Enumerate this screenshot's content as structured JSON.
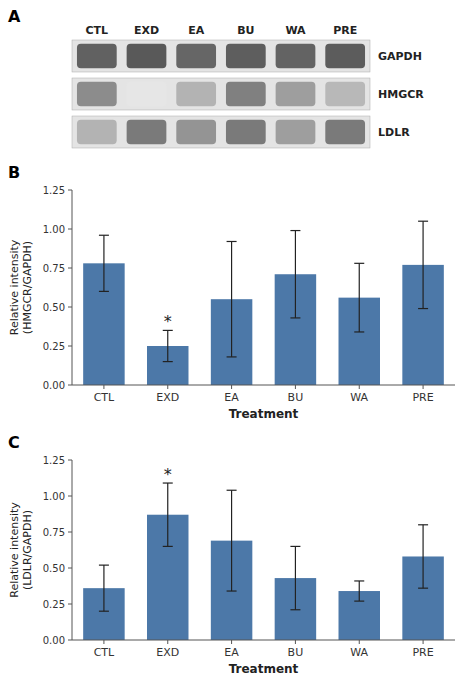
{
  "chart_data": [
    {
      "type": "heatmap",
      "title": "A",
      "categories": [
        "CTL",
        "EXD",
        "EA",
        "BU",
        "WA",
        "PRE"
      ],
      "series": [
        {
          "name": "GAPDH",
          "values": [
            0.62,
            0.65,
            0.6,
            0.63,
            0.61,
            0.64
          ]
        },
        {
          "name": "HMGCR",
          "values": [
            0.45,
            0.1,
            0.3,
            0.5,
            0.38,
            0.28
          ]
        },
        {
          "name": "LDLR",
          "values": [
            0.3,
            0.52,
            0.42,
            0.52,
            0.38,
            0.52
          ]
        }
      ]
    },
    {
      "type": "bar",
      "title": "B",
      "categories": [
        "CTL",
        "EXD",
        "EA",
        "BU",
        "WA",
        "PRE"
      ],
      "values": [
        0.78,
        0.25,
        0.55,
        0.71,
        0.56,
        0.77
      ],
      "errors": [
        0.18,
        0.1,
        0.37,
        0.28,
        0.22,
        0.28
      ],
      "color": "#4c78a8",
      "xlabel": "Treatment",
      "ylabel": "Relative intensity\n(HMGCR/GAPDH)",
      "ylim": [
        0,
        1.25
      ],
      "yticks": [
        {
          "value": 0.0,
          "label": "0.00"
        },
        {
          "value": 0.25,
          "label": "0.25"
        },
        {
          "value": 0.5,
          "label": "0.50"
        },
        {
          "value": 0.75,
          "label": "0.75"
        },
        {
          "value": 1.0,
          "label": "1.00"
        },
        {
          "value": 1.25,
          "label": "1.25"
        }
      ],
      "annotations": [
        {
          "text": "*",
          "category": "EXD"
        }
      ],
      "grid": false
    },
    {
      "type": "bar",
      "title": "C",
      "categories": [
        "CTL",
        "EXD",
        "EA",
        "BU",
        "WA",
        "PRE"
      ],
      "values": [
        0.36,
        0.87,
        0.69,
        0.43,
        0.34,
        0.58
      ],
      "errors": [
        0.16,
        0.22,
        0.35,
        0.22,
        0.07,
        0.22
      ],
      "color": "#4c78a8",
      "xlabel": "Treatment",
      "ylabel": "Relative intensity\n(LDLR/GAPDH)",
      "ylim": [
        0,
        1.25
      ],
      "yticks": [
        {
          "value": 0.0,
          "label": "0.00"
        },
        {
          "value": 0.25,
          "label": "0.25"
        },
        {
          "value": 0.5,
          "label": "0.50"
        },
        {
          "value": 0.75,
          "label": "0.75"
        },
        {
          "value": 1.0,
          "label": "1.00"
        },
        {
          "value": 1.25,
          "label": "1.25"
        }
      ],
      "annotations": [
        {
          "text": "*",
          "category": "EXD"
        }
      ],
      "grid": false
    }
  ]
}
